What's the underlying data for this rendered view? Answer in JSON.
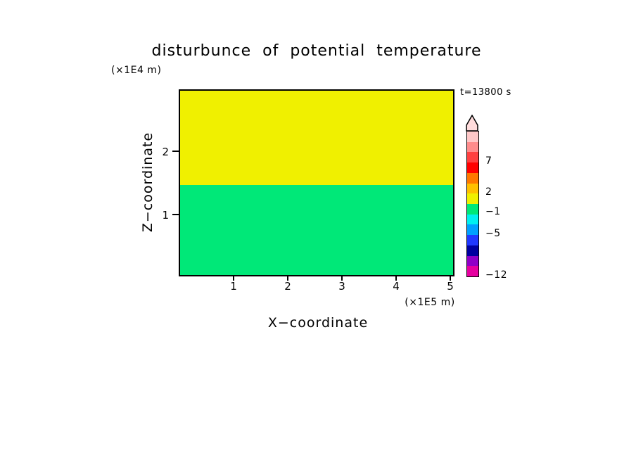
{
  "title": "disturbunce of potential temperature",
  "time_label": "t=13800 s",
  "x_axis": {
    "label": "X−coordinate",
    "unit": "(×1E5 m)",
    "ticks": [
      "1",
      "2",
      "3",
      "4",
      "5"
    ]
  },
  "y_axis": {
    "label": "Z−coordinate",
    "unit": "(×1E4 m)",
    "ticks": [
      "2",
      "1"
    ]
  },
  "plot": {
    "upper_band_color": "#F0F000",
    "lower_band_color": "#00E878"
  },
  "colorbar": {
    "tip_color": "#FFDCDC",
    "labels": [
      "7",
      "2",
      "−1",
      "−5",
      "−12"
    ],
    "segments": [
      "#FFC8C8",
      "#FF8C8C",
      "#FF4040",
      "#FF0000",
      "#FF7800",
      "#FFC000",
      "#F0F000",
      "#00E878",
      "#00F0F0",
      "#00A0FF",
      "#2038FF",
      "#0000A0",
      "#9000C8",
      "#E600A0"
    ]
  },
  "chart_data": {
    "type": "heatmap",
    "title": "disturbunce of potential temperature",
    "time_annotation": "t=13800 s",
    "xlabel": "X−coordinate",
    "ylabel": "Z−coordinate",
    "x_unit": "(×1E5 m)",
    "y_unit": "(×1E4 m)",
    "xlim": [
      0,
      5.05
    ],
    "ylim": [
      0,
      2.93
    ],
    "x_ticks": [
      1,
      2,
      3,
      4,
      5
    ],
    "y_ticks": [
      1,
      2
    ],
    "grid": false,
    "legend_position": "colorbar-right",
    "colorbar_tick_values": [
      7,
      2,
      -1,
      -5,
      -12
    ],
    "bands": [
      {
        "z_min": 1.43,
        "z_max": 2.93,
        "x_min": 0,
        "x_max": 5.05,
        "color": "#F0F000",
        "approx_value_bin": "0 to 2 (yellow)"
      },
      {
        "z_min": 0,
        "z_max": 1.43,
        "x_min": 0,
        "x_max": 5.05,
        "color": "#00E878",
        "approx_value_bin": "-1 to 0 (green)"
      }
    ]
  }
}
